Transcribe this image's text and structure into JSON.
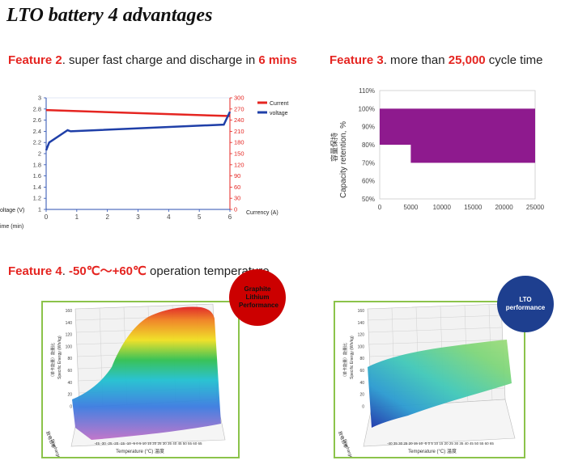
{
  "title": "LTO battery 4 advantages",
  "feature2": {
    "tag": "Feature 2",
    "text_before": ".  super fast charge and discharge in ",
    "highlight": "6 mins"
  },
  "feature3": {
    "tag": "Feature 3",
    "text_before": ".  more than ",
    "highlight": "25,000",
    "text_after": " cycle time"
  },
  "feature4": {
    "tag": "Feature 4",
    "text_before": ".  ",
    "highlight": "-50℃～+60℃",
    "text_after": " operation temperature"
  },
  "chart_data": [
    {
      "type": "line",
      "x": [
        0,
        0.1,
        0.7,
        0.8,
        6,
        6.1
      ],
      "series": [
        {
          "name": "Current",
          "axis": "right",
          "x": [
            0,
            6
          ],
          "values": [
            267,
            251
          ]
        },
        {
          "name": "voltage",
          "axis": "left",
          "x": [
            0,
            0.1,
            0.7,
            0.8,
            5.8,
            6
          ],
          "values": [
            2.06,
            2.2,
            2.42,
            2.4,
            2.52,
            2.75
          ]
        }
      ],
      "xticks": [
        "0",
        "1",
        "2",
        "3",
        "4",
        "5",
        "6"
      ],
      "yticks_left": [
        "1",
        "1.2",
        "1.4",
        "1.6",
        "1.8",
        "2",
        "2.2",
        "2.4",
        "2.6",
        "2.8",
        "3"
      ],
      "yticks_right": [
        "0",
        "30",
        "60",
        "90",
        "120",
        "150",
        "180",
        "210",
        "240",
        "270",
        "300"
      ],
      "xlim": [
        0,
        6
      ],
      "ylim_left": [
        1,
        3
      ],
      "ylim_right": [
        0,
        300
      ],
      "ylabel_left": "oltage (V)",
      "xlabel": "ime (min)",
      "ylabel_right": "Currency (A)",
      "legend_position": "top-right",
      "colors": {
        "current": "#e52521",
        "voltage": "#1f3fa8"
      }
    },
    {
      "type": "area",
      "x": [
        0,
        5000,
        5000,
        25000
      ],
      "values": [
        100,
        100,
        100,
        100
      ],
      "lower": [
        80,
        80,
        70,
        70
      ],
      "xticks": [
        "0",
        "5000",
        "10000",
        "15000",
        "20000",
        "25000"
      ],
      "yticks": [
        "50%",
        "60%",
        "70%",
        "80%",
        "90%",
        "100%",
        "110%"
      ],
      "xlim": [
        0,
        25000
      ],
      "ylim": [
        50,
        110
      ],
      "ylabel": "Capacity retention, %",
      "ylabel_cn": "容量保持",
      "color": "#8e1a8e"
    }
  ],
  "plot3d_left": {
    "badge": "Graphite Lithium Performance",
    "zticks": [
      "160",
      "140",
      "120",
      "100",
      "80",
      "60",
      "40",
      "20",
      "0"
    ],
    "zlabel": "Specific Energy (Wh/kg)",
    "zlabel_cn": "（单卡能量）能量比",
    "ylabel": "Discharge Rate (C)",
    "ylabel_cn": "放电倍率",
    "xticks": "-45 -30 -25 -20 -15 -10 -5 0 5 10 15 20 25 30 35 40 45 50 55 60 65",
    "xlabel": "Temperature (°C)  温度",
    "badge_color": "#cc0000"
  },
  "plot3d_right": {
    "badge": "LTO performance",
    "zticks": [
      "160",
      "140",
      "120",
      "100",
      "80",
      "60",
      "40",
      "20",
      "0"
    ],
    "zlabel": "Specific Energy (Wh/kg)",
    "zlabel_cn": "（单卡能量）能量比",
    "ylabel": "Discharge Rate (C)",
    "ylabel_cn": "放电倍率",
    "xticks": "-40 35 30 25 20 15 10 -5 0 5 10 15 20 25 30 35 40 45 50 55 60 65",
    "xlabel": "Temperature (°C)  温度",
    "badge_color": "#1e3f8f"
  }
}
